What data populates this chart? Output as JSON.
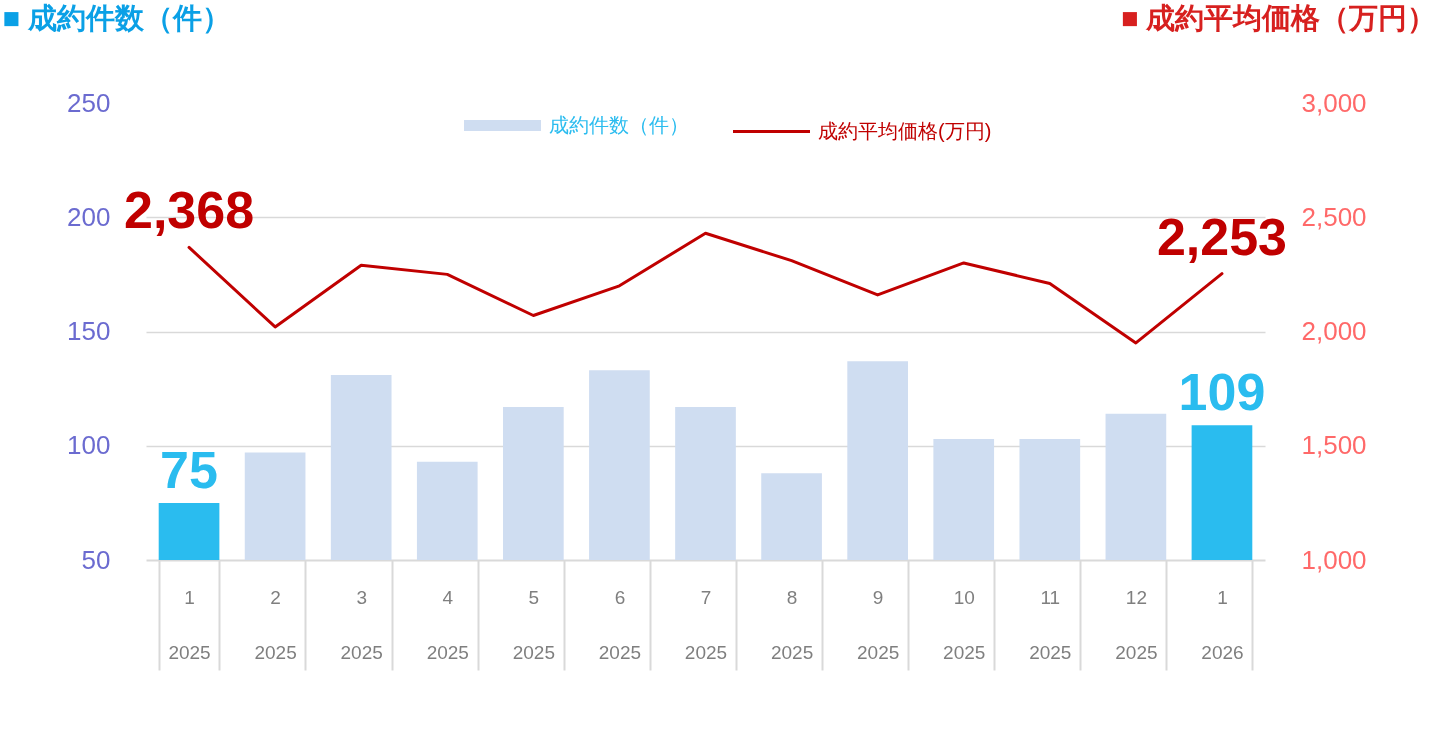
{
  "chart_data": {
    "type": "bar",
    "categories": [
      "1\n2025",
      "2\n2025",
      "3\n2025",
      "4\n2025",
      "5\n2025",
      "6\n2025",
      "7\n2025",
      "8\n2025",
      "9\n2025",
      "10\n2025",
      "11\n2025",
      "12\n2025",
      "1\n2026"
    ],
    "series": [
      {
        "name": "成約件数（件）",
        "color": "#cfddf1",
        "colors": [
          "#2abcef",
          "#cfddf1",
          "#cfddf1",
          "#cfddf1",
          "#cfddf1",
          "#cfddf1",
          "#cfddf1",
          "#cfddf1",
          "#cfddf1",
          "#cfddf1",
          "#cfddf1",
          "#cfddf1",
          "#2abcef"
        ],
        "values": [
          75,
          97,
          131,
          93,
          117,
          133,
          117,
          88,
          137,
          103,
          103,
          114,
          109
        ],
        "value_labels": [
          "75",
          null,
          null,
          null,
          null,
          null,
          null,
          null,
          null,
          null,
          null,
          null,
          "109"
        ]
      },
      {
        "name": "成約平均価格(万円)",
        "type": "line",
        "axis": "y2",
        "color": "#c00000",
        "values": [
          2368,
          2020,
          2290,
          2250,
          2070,
          2200,
          2430,
          2310,
          2160,
          2300,
          2210,
          1950,
          2253
        ],
        "value_labels": [
          "2,368",
          null,
          null,
          null,
          null,
          null,
          null,
          null,
          null,
          null,
          null,
          null,
          "2,253"
        ]
      }
    ],
    "ylabel": "■ 成約件数（件）",
    "y2label": "■ 成約平均価格（万円）",
    "ylim": [
      50,
      250
    ],
    "yticks": [
      50,
      100,
      150,
      200,
      250
    ],
    "y2lim": [
      1000,
      3000
    ],
    "y2ticks": [
      {
        "value": 1000,
        "label": "1,000"
      },
      {
        "value": 1500,
        "label": "1,500"
      },
      {
        "value": 2000,
        "label": "2,000"
      },
      {
        "value": 2500,
        "label": "2,500"
      },
      {
        "value": 3000,
        "label": "3,000"
      }
    ],
    "grid": "y",
    "legend": "top"
  }
}
